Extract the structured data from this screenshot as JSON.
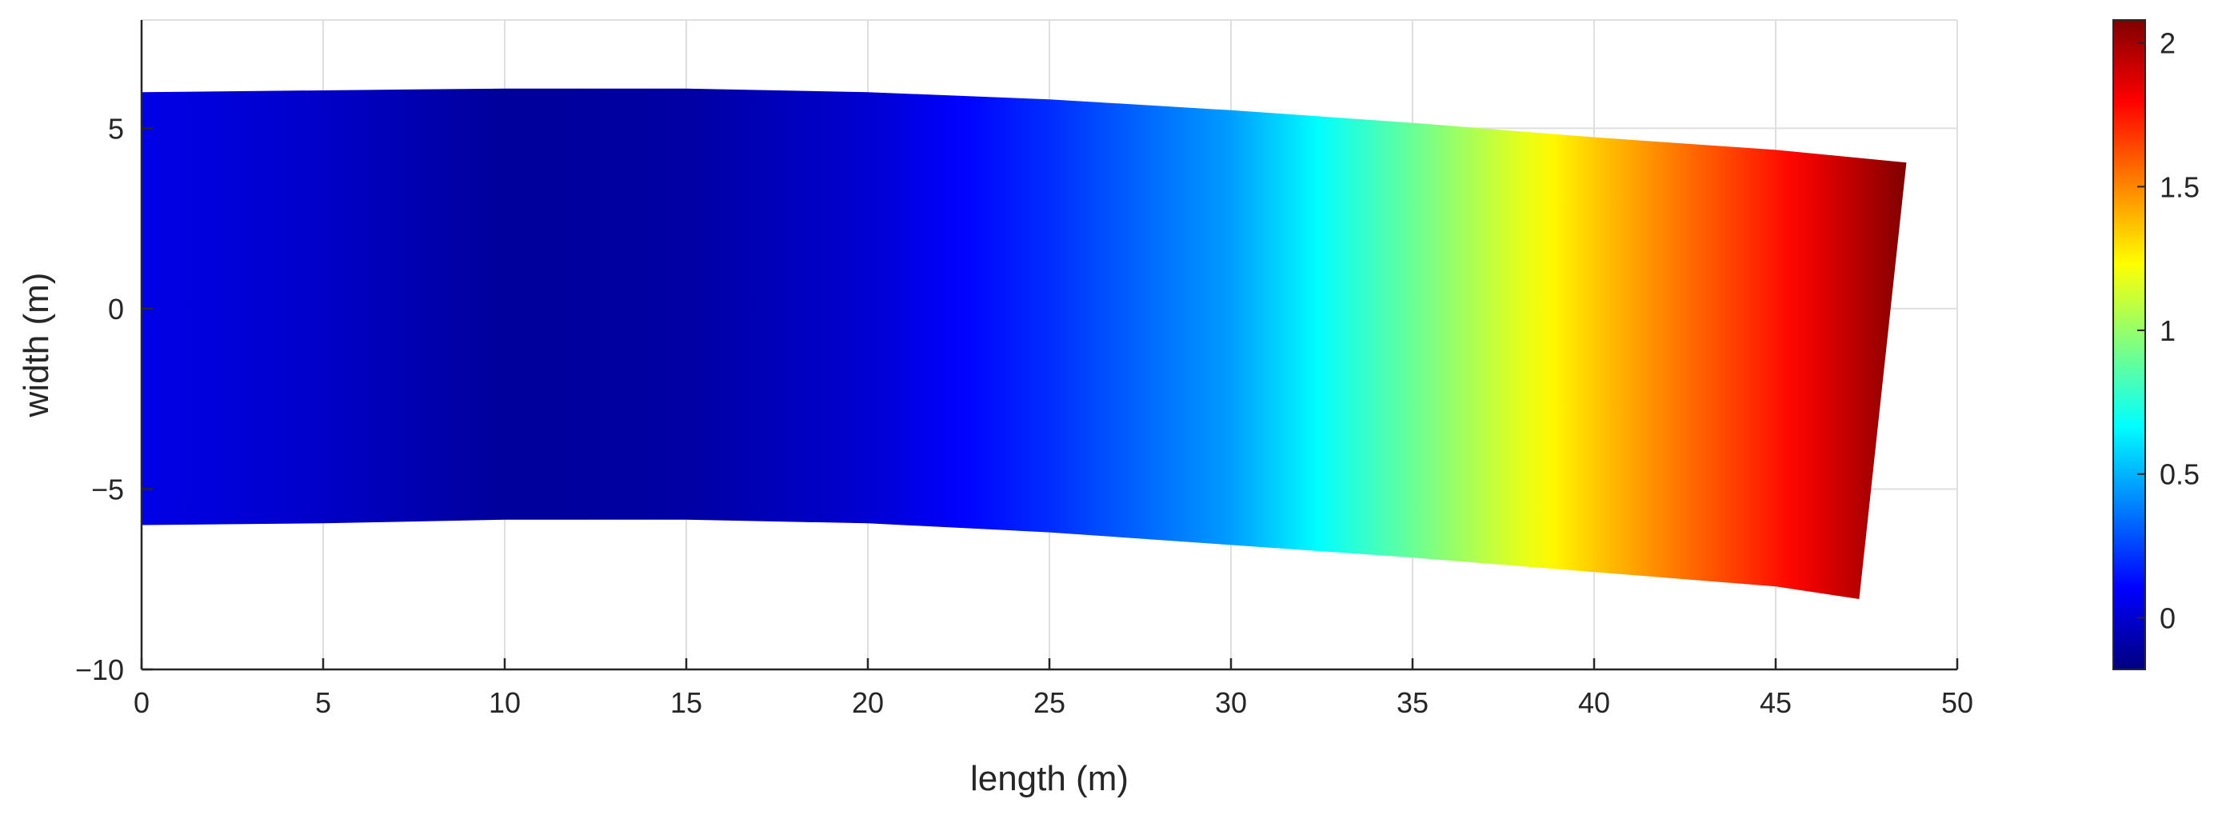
{
  "chart_data": {
    "type": "heatmap",
    "xlabel": "length (m)",
    "ylabel": "width (m)",
    "xlim": [
      0,
      50
    ],
    "ylim": [
      -10,
      8
    ],
    "xticks": [
      0,
      5,
      10,
      15,
      20,
      25,
      30,
      35,
      40,
      45,
      50
    ],
    "xtick_labels": [
      "0",
      "5",
      "10",
      "15",
      "20",
      "25",
      "30",
      "35",
      "40",
      "45",
      "50"
    ],
    "yticks": [
      -10,
      -5,
      0,
      5
    ],
    "ytick_labels": [
      "−10",
      "−5",
      "0",
      "5"
    ],
    "grid": true,
    "colormap": "jet",
    "colorbar": {
      "range": [
        -0.18,
        2.08
      ],
      "ticks": [
        0,
        0.5,
        1,
        1.5,
        2
      ],
      "tick_labels": [
        "0",
        "0.5",
        "1",
        "1.5",
        "2"
      ]
    },
    "shape_outline": {
      "top_edge": [
        [
          0,
          6.0
        ],
        [
          5,
          6.05
        ],
        [
          10,
          6.1
        ],
        [
          15,
          6.1
        ],
        [
          20,
          6.0
        ],
        [
          25,
          5.8
        ],
        [
          30,
          5.5
        ],
        [
          35,
          5.15
        ],
        [
          40,
          4.75
        ],
        [
          45,
          4.4
        ],
        [
          48.6,
          4.05
        ]
      ],
      "bottom_edge": [
        [
          0,
          -6.0
        ],
        [
          5,
          -5.95
        ],
        [
          10,
          -5.85
        ],
        [
          15,
          -5.85
        ],
        [
          20,
          -5.95
        ],
        [
          25,
          -6.2
        ],
        [
          30,
          -6.55
        ],
        [
          35,
          -6.9
        ],
        [
          40,
          -7.3
        ],
        [
          45,
          -7.7
        ],
        [
          47.3,
          -8.05
        ]
      ]
    },
    "field_along_length": {
      "x": [
        0,
        5,
        10,
        15,
        20,
        25,
        30,
        35,
        40,
        45,
        48.6
      ],
      "value": [
        0.05,
        -0.02,
        -0.12,
        -0.1,
        0.0,
        0.2,
        0.45,
        0.9,
        1.35,
        1.75,
        2.08
      ]
    }
  }
}
